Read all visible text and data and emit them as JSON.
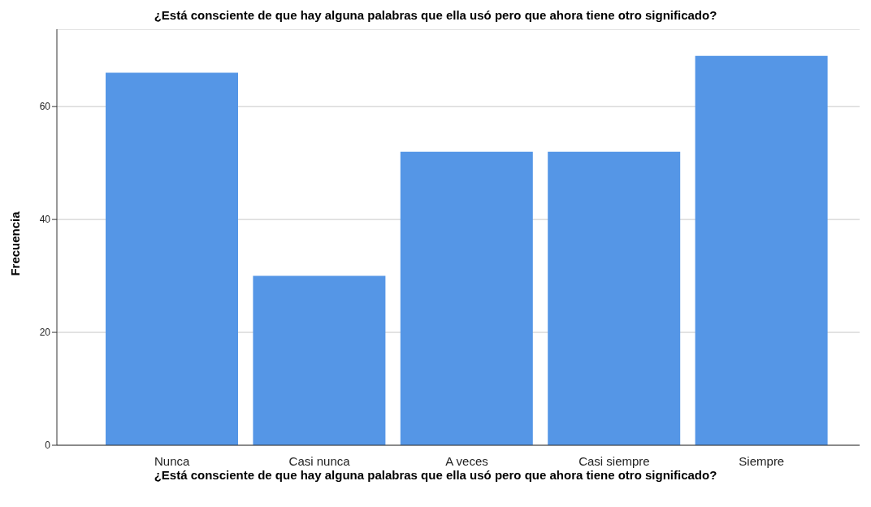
{
  "chart_data": {
    "type": "bar",
    "title": "¿Está consciente de que hay alguna palabras que ella usó pero que ahora tiene otro significado?",
    "xlabel": "¿Está consciente de que hay alguna palabras que ella usó pero que ahora tiene otro significado?",
    "ylabel": "Frecuencia",
    "categories": [
      "Nunca",
      "Casi nunca",
      "A veces",
      "Casi siempre",
      "Siempre"
    ],
    "values": [
      66,
      30,
      52,
      52,
      69
    ],
    "color": "#5596e6",
    "ylim": [
      0,
      73.7
    ],
    "yticks": [
      0,
      20,
      40,
      60
    ],
    "grid": "y"
  }
}
